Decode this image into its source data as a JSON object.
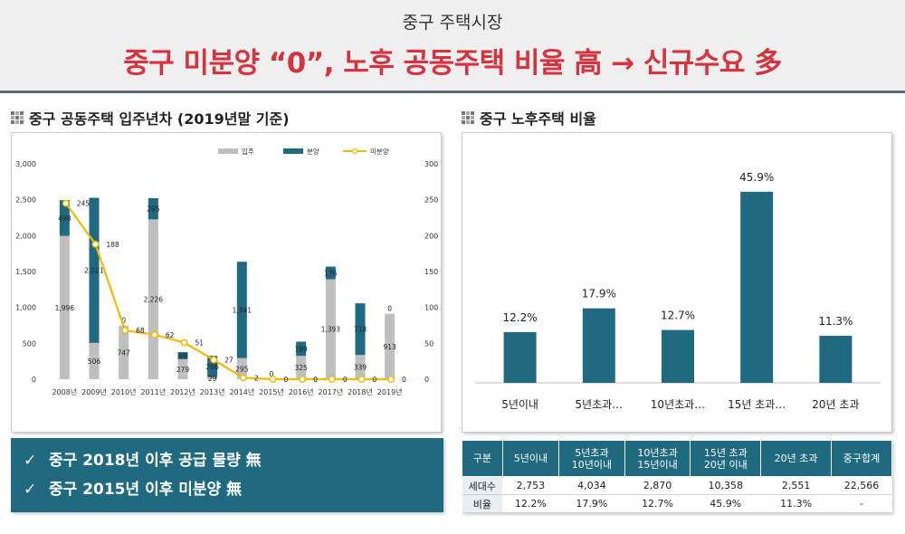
{
  "header": {
    "subtitle": "중구 주택시장",
    "title": "중구 미분양 “0”, 노후 공동주택 비율 高 → 신규수요 多"
  },
  "left_section": {
    "title": "중구 공동주택 입주년차 (2019년말 기준)"
  },
  "right_section": {
    "title": "중구 노후주택 비율"
  },
  "colors": {
    "move_in": "#bfbfbf",
    "sale": "#1f6a80",
    "unsold": "#f5b800",
    "callout_bg": "#1f6a80",
    "title_red": "#d6333f"
  },
  "chart_data": [
    {
      "type": "bar",
      "subtype": "stacked-bar-with-line",
      "categories": [
        "2008년",
        "2009년",
        "2010년",
        "2011년",
        "2012년",
        "2013년",
        "2014년",
        "2015년",
        "2016년",
        "2017년",
        "2018년",
        "2019년"
      ],
      "series": [
        {
          "name": "입주",
          "axis": "left",
          "values": [
            1996,
            506,
            747,
            2226,
            279,
            29,
            295,
            0,
            325,
            1393,
            339,
            913
          ]
        },
        {
          "name": "분양",
          "axis": "left",
          "values": [
            498,
            2021,
            0,
            295,
            98,
            296,
            1341,
            0,
            199,
            176,
            718,
            0
          ]
        },
        {
          "name": "미분양",
          "axis": "right",
          "type": "line",
          "values": [
            245,
            188,
            68,
            62,
            51,
            27,
            2,
            0,
            0,
            0,
            0,
            0
          ]
        }
      ],
      "y_left_ticks": [
        "3,000",
        "2,500",
        "2,000",
        "1,500",
        "1,000",
        "500",
        "0"
      ],
      "y_right_ticks": [
        "300",
        "250",
        "200",
        "150",
        "100",
        "50",
        "0"
      ],
      "ylim_left": [
        0,
        3000
      ],
      "ylim_right": [
        0,
        300
      ],
      "labels": {
        "move_in": [
          "1,996",
          "506",
          "747",
          "2,226",
          "279",
          "29",
          "295",
          "",
          "325",
          "1,393",
          "339",
          "913"
        ],
        "sale": [
          "498",
          "2,021",
          "0",
          "295",
          "98",
          "296",
          "1,341",
          "0",
          "199",
          "176",
          "718",
          "0"
        ],
        "unsold": [
          "245",
          "188",
          "68",
          "62",
          "51",
          "27",
          "2",
          "0",
          "0",
          "0",
          "0",
          "0"
        ]
      },
      "legend": "top-right",
      "grid": false
    },
    {
      "type": "bar",
      "categories": [
        "5년이내",
        "5년초과…",
        "10년초과…",
        "15년 초과…",
        "20년 초과"
      ],
      "values": [
        12.2,
        17.9,
        12.7,
        45.9,
        11.3
      ],
      "value_labels": [
        "12.2%",
        "17.9%",
        "12.7%",
        "45.9%",
        "11.3%"
      ],
      "ylim": [
        0,
        50
      ],
      "grid": false
    }
  ],
  "callouts": [
    "중구 2018년 이후 공급 물량 無",
    "중구 2015년 이후 미분양 無"
  ],
  "table": {
    "headers": [
      "구분",
      "5년이내",
      "5년초과\n10년이내",
      "10년초과\n15년이내",
      "15년 초과\n20년 이내",
      "20년 초과",
      "중구합계"
    ],
    "rows": [
      [
        "세대수",
        "2,753",
        "4,034",
        "2,870",
        "10,358",
        "2,551",
        "22,566"
      ],
      [
        "비율",
        "12.2%",
        "17.9%",
        "12.7%",
        "45.9%",
        "11.3%",
        "-"
      ]
    ]
  }
}
